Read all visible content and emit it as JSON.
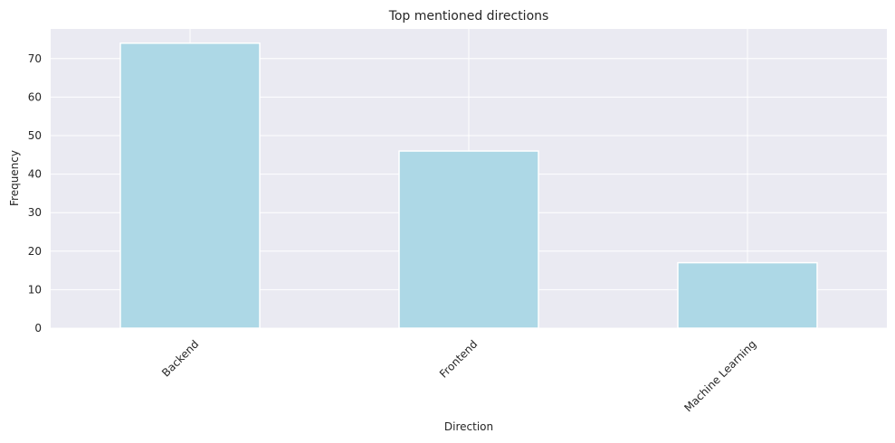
{
  "chart_data": {
    "type": "bar",
    "title": "Top mentioned directions",
    "xlabel": "Direction",
    "ylabel": "Frequency",
    "categories": [
      "Backend",
      "Frontend",
      "Machine Learning"
    ],
    "values": [
      74,
      46,
      17
    ],
    "ylim": [
      0,
      77.7
    ],
    "yticks": [
      0,
      10,
      20,
      30,
      40,
      50,
      60,
      70
    ],
    "grid": true,
    "x_tick_rotation_deg": 45,
    "colors": {
      "bar": "#add8e6",
      "bar_edge": "#ffffff",
      "plot_background": "#eaeaf2",
      "grid": "#ffffff",
      "text": "#262626"
    }
  }
}
